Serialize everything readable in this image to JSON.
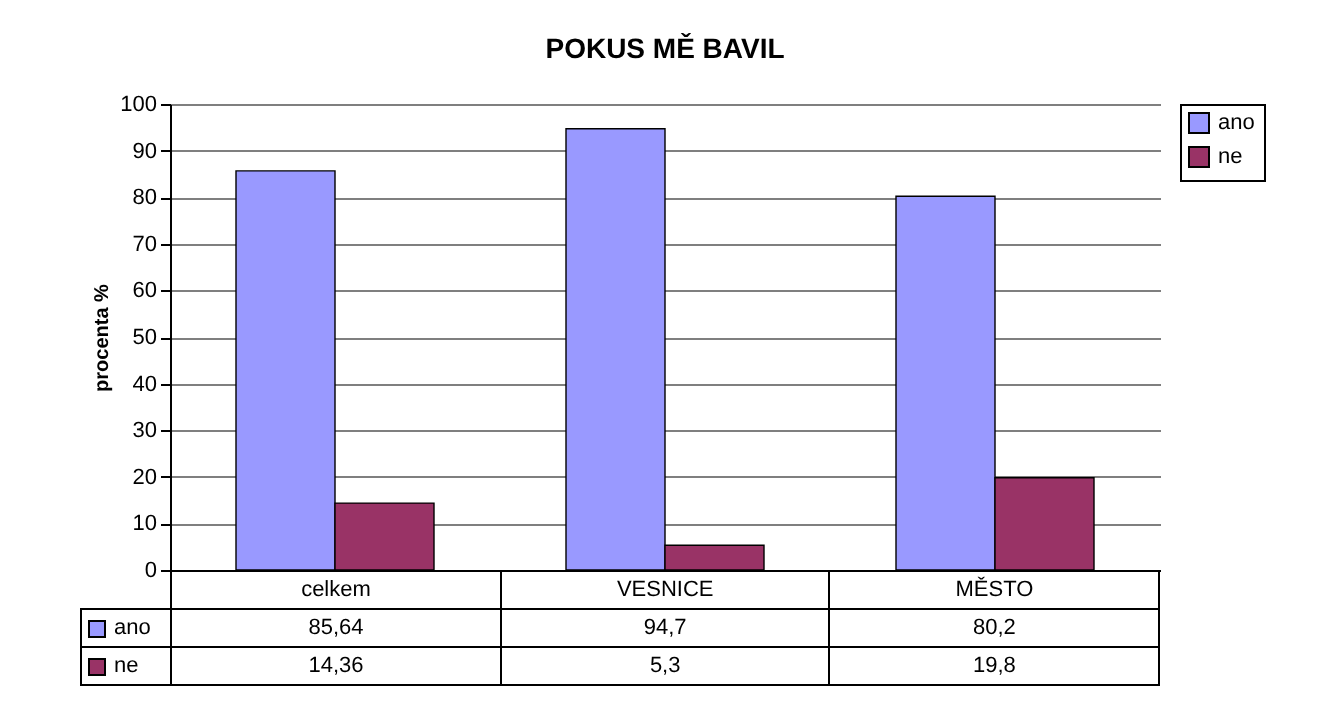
{
  "chart_data": {
    "type": "bar",
    "title": "POKUS MĚ BAVIL",
    "ylabel": "procenta %",
    "categories": [
      "celkem",
      "VESNICE",
      "MĚSTO"
    ],
    "series": [
      {
        "name": "ano",
        "color": "#9999ff",
        "values": [
          85.64,
          94.7,
          80.2
        ],
        "value_labels": [
          "85,64",
          "94,7",
          "80,2"
        ]
      },
      {
        "name": "ne",
        "color": "#993366",
        "values": [
          14.36,
          5.3,
          19.8
        ],
        "value_labels": [
          "14,36",
          "5,3",
          "19,8"
        ]
      }
    ],
    "ylim": [
      0,
      100
    ],
    "yticks": [
      0,
      10,
      20,
      30,
      40,
      50,
      60,
      70,
      80,
      90,
      100
    ],
    "grid": "y",
    "legend": "right"
  }
}
